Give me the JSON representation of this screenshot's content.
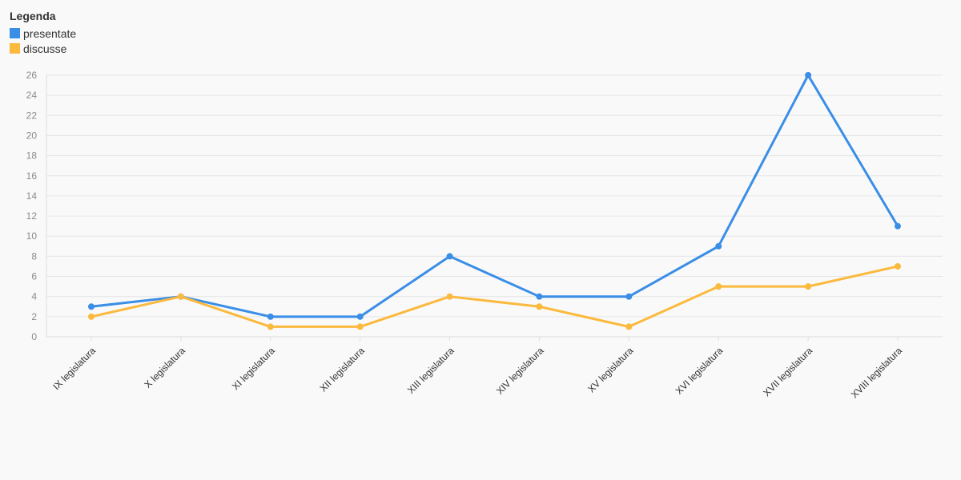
{
  "legend": {
    "title": "Legenda"
  },
  "chart_data": {
    "type": "line",
    "title": "",
    "xlabel": "",
    "ylabel": "",
    "categories": [
      "IX legislatura",
      "X legislatura",
      "XI legislatura",
      "XII legislatura",
      "XIII legislatura",
      "XIV legislatura",
      "XV legislatura",
      "XVI legislatura",
      "XVII legislatura",
      "XVIII legislatura"
    ],
    "series": [
      {
        "name": "presentate",
        "color": "#3a8ee6",
        "values": [
          3,
          4,
          2,
          2,
          8,
          4,
          4,
          9,
          26,
          11
        ]
      },
      {
        "name": "discusse",
        "color": "#fbb93d",
        "values": [
          2,
          4,
          1,
          1,
          4,
          3,
          1,
          5,
          5,
          7
        ]
      }
    ],
    "ylim": [
      0,
      26
    ],
    "yticks": [
      0,
      2,
      4,
      6,
      8,
      10,
      12,
      14,
      16,
      18,
      20,
      22,
      24,
      26
    ],
    "grid": true,
    "legend_position": "top-left"
  }
}
